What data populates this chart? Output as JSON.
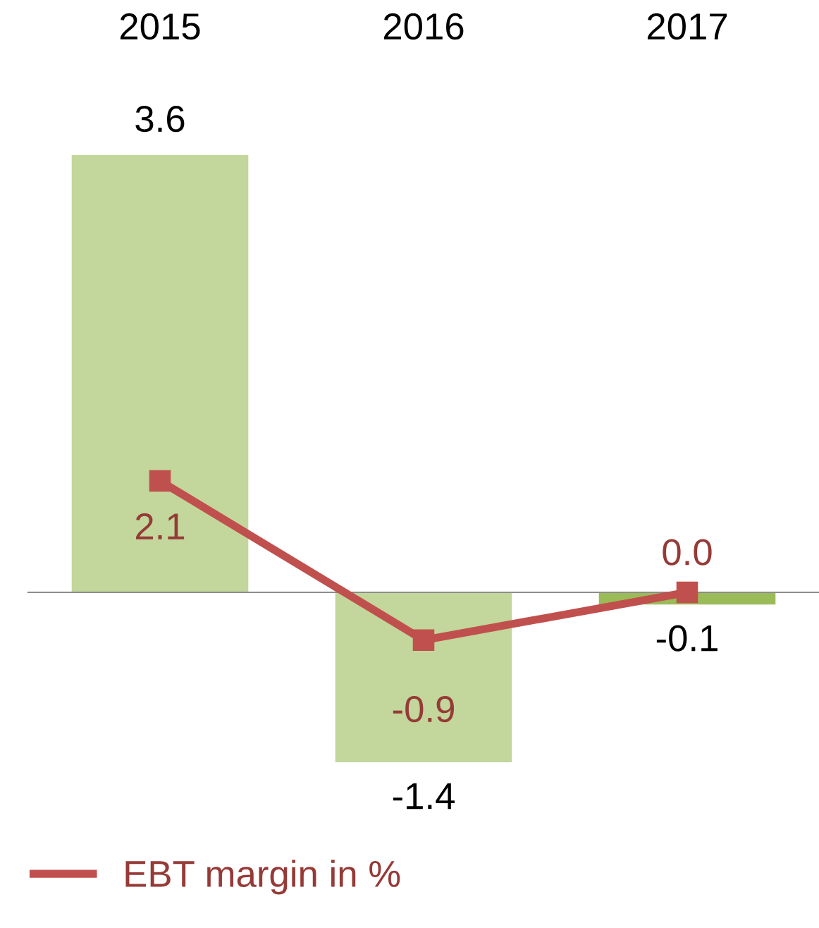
{
  "chart_data": {
    "type": "bar",
    "categories": [
      "2015",
      "2016",
      "2017"
    ],
    "series": [
      {
        "colors": [
          "#c3d69b",
          "#c3d69b",
          "#9bbb59"
        ],
        "values": [
          3.6,
          -1.4,
          -0.1
        ],
        "value_labels": [
          "3.6",
          "-1.4",
          "-0.1"
        ]
      },
      {
        "type": "line",
        "name": "EBT margin in %",
        "color": "#c0504d",
        "axis": "y2",
        "marker": "square",
        "values": [
          2.1,
          -0.9,
          0.0
        ],
        "value_labels": [
          "2.1",
          "-0.9",
          "0.0"
        ]
      }
    ],
    "tick_labels": "x",
    "grid": false,
    "legend": "bottom left"
  }
}
